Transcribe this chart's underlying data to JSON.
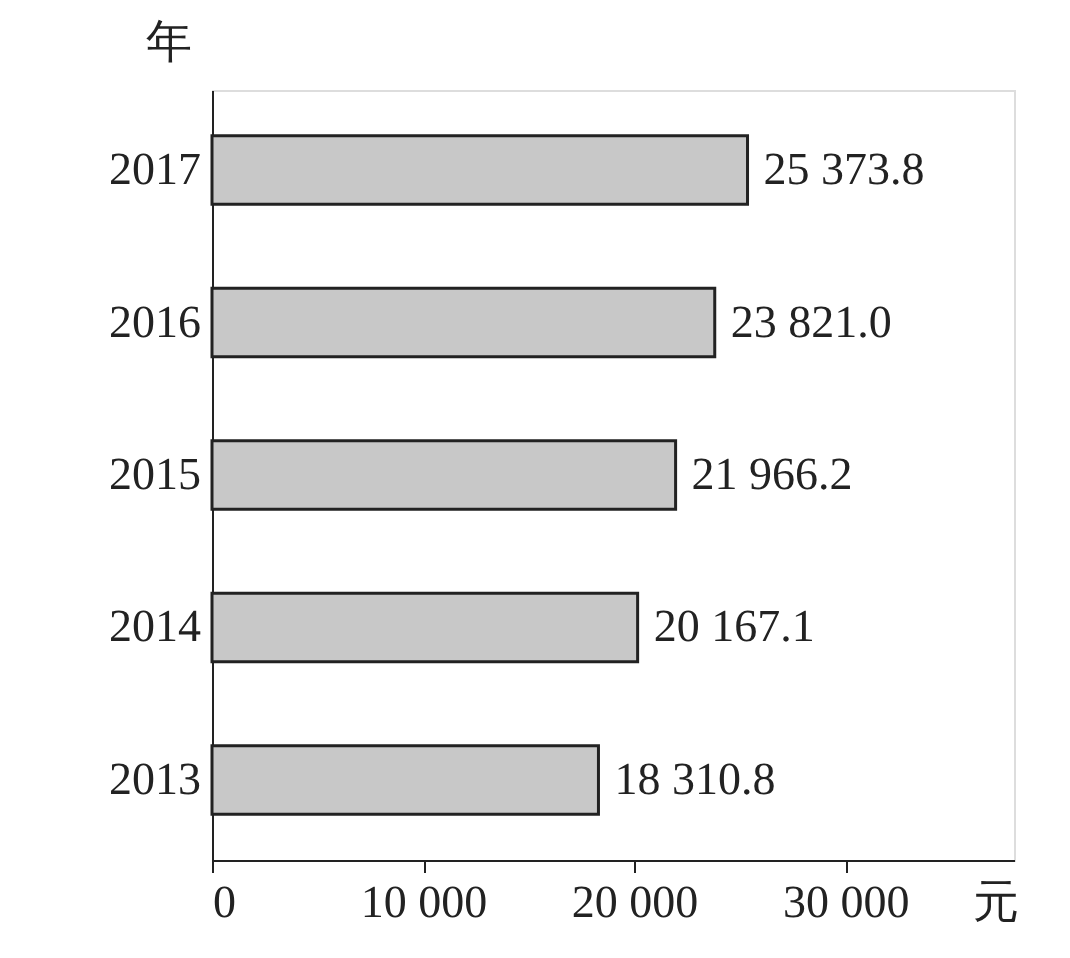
{
  "chart_data": {
    "type": "bar",
    "orientation": "horizontal",
    "categories": [
      "2017",
      "2016",
      "2015",
      "2014",
      "2013"
    ],
    "values": [
      25373.8,
      23821.0,
      21966.2,
      20167.1,
      18310.8
    ],
    "value_labels": [
      "25 373.8",
      "23 821.0",
      "21 966.2",
      "20 167.1",
      "18 310.8"
    ],
    "color": "#c8c8c8",
    "xlim": [
      0,
      38000
    ],
    "xticks": [
      0,
      {
        "value": 10000,
        "label": "10 000"
      },
      {
        "value": 20000,
        "label": "20 000"
      },
      {
        "value": 30000,
        "label": "30 000"
      }
    ],
    "xlabel": "元",
    "ylabel": "年",
    "grid": false
  }
}
